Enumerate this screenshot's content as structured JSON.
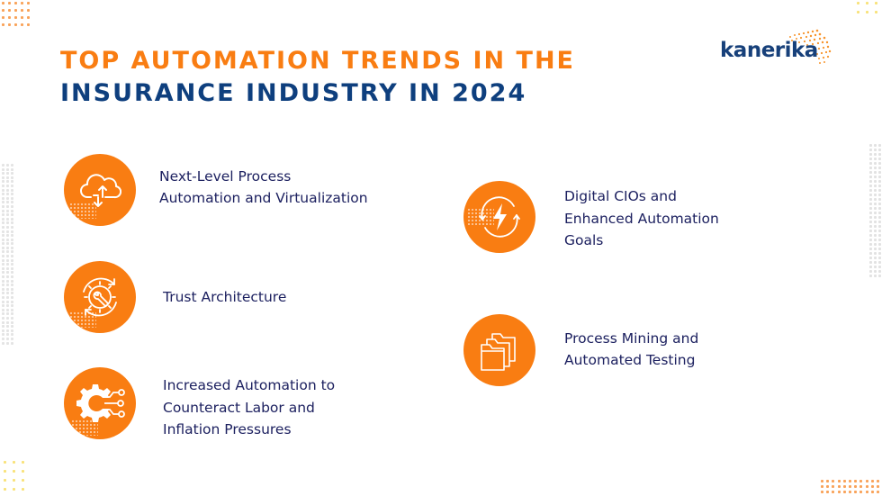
{
  "header": {
    "title_line1": "TOP AUTOMATION TRENDS IN THE",
    "title_line2": "INSURANCE INDUSTRY IN 2024"
  },
  "brand": {
    "logo_text": "kanerika",
    "logo_icon": "dotted-radial-arc-icon"
  },
  "colors": {
    "accent_orange": "#f97d12",
    "title_navy": "#0e3f7e",
    "text_navy": "#1d2160",
    "background": "#ffffff"
  },
  "trends": [
    {
      "icon": "cloud-upload-download-icon",
      "lines": [
        "Next-Level Process",
        "Automation and Virtualization"
      ]
    },
    {
      "icon": "gear-wrench-cycle-icon",
      "lines": [
        "Trust Architecture"
      ]
    },
    {
      "icon": "gear-circuit-icon",
      "lines": [
        "Increased Automation to",
        "Counteract Labor and",
        "Inflation Pressures"
      ]
    },
    {
      "icon": "lightning-cycle-icon",
      "lines": [
        "Digital CIOs and",
        "Enhanced Automation",
        "Goals"
      ]
    },
    {
      "icon": "folders-icon",
      "lines": [
        "Process Mining and",
        "Automated Testing"
      ]
    }
  ]
}
